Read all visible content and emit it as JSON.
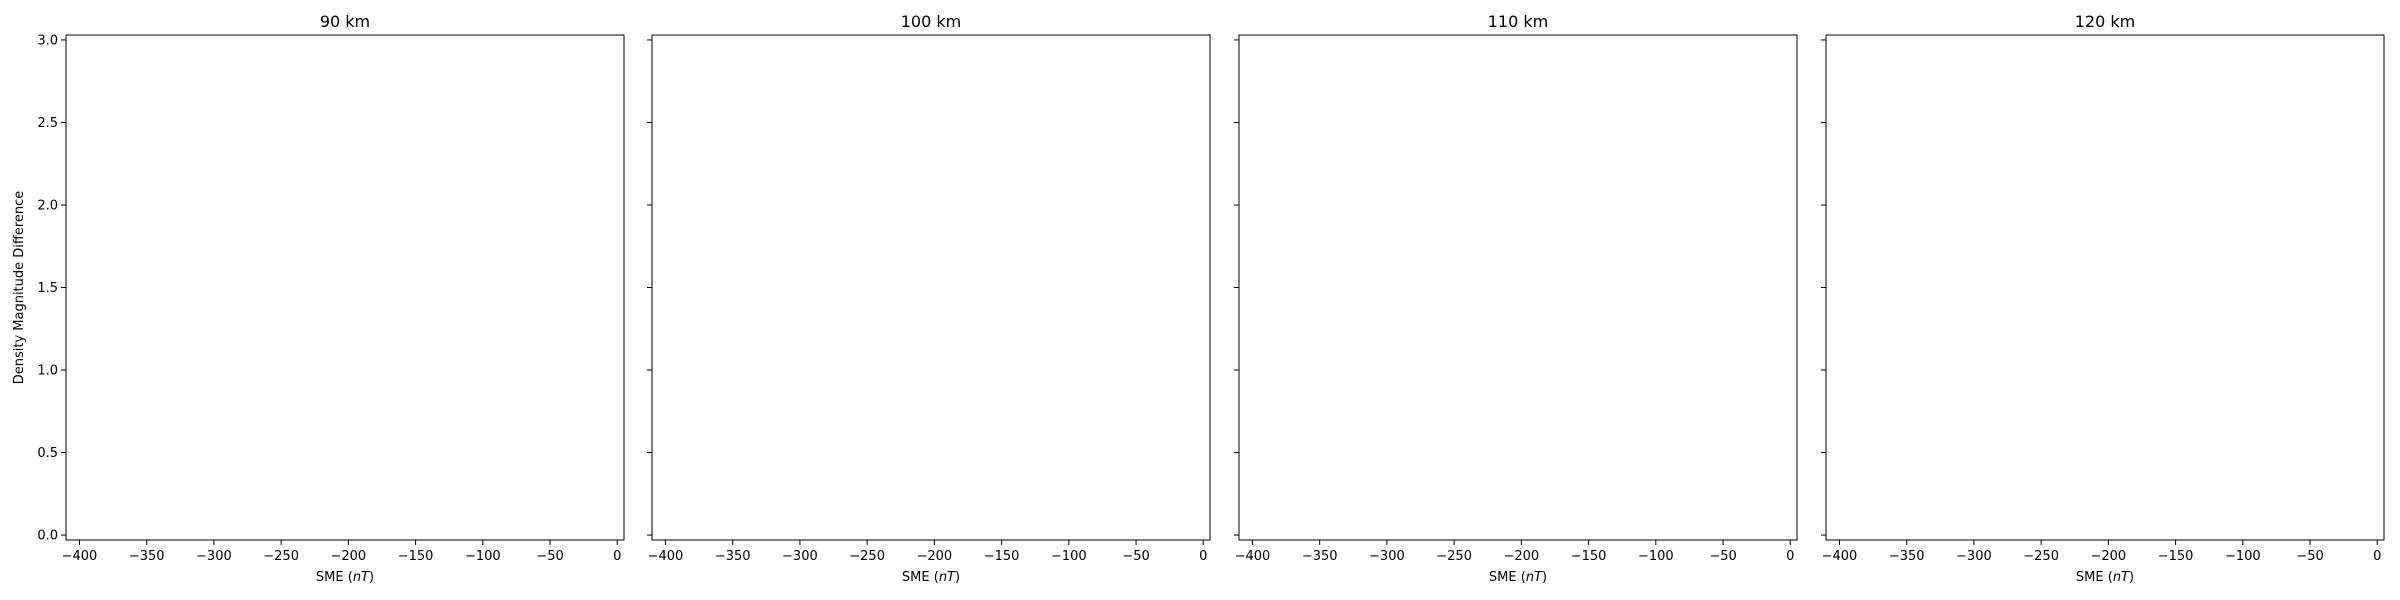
{
  "chart_data": [
    {
      "type": "scatter",
      "title": "90 km",
      "xlabel": "SME (nT)",
      "ylabel": "Density Magnitude Difference",
      "xlim": [
        -410,
        5
      ],
      "ylim": [
        -0.03,
        3.03
      ],
      "xticks": [
        "−400",
        "−350",
        "−300",
        "−250",
        "−200",
        "−150",
        "−100",
        "−50",
        "0"
      ],
      "yticks": [
        "0.0",
        "0.5",
        "1.0",
        "1.5",
        "2.0",
        "2.5",
        "3.0"
      ],
      "series": []
    },
    {
      "type": "scatter",
      "title": "100 km",
      "xlabel": "SME (nT)",
      "ylabel": "",
      "xlim": [
        -410,
        5
      ],
      "ylim": [
        -0.03,
        3.03
      ],
      "xticks": [
        "−400",
        "−350",
        "−300",
        "−250",
        "−200",
        "−150",
        "−100",
        "−50",
        "0"
      ],
      "yticks": [],
      "series": []
    },
    {
      "type": "scatter",
      "title": "110 km",
      "xlabel": "SME (nT)",
      "ylabel": "",
      "xlim": [
        -410,
        5
      ],
      "ylim": [
        -0.03,
        3.03
      ],
      "xticks": [
        "−400",
        "−350",
        "−300",
        "−250",
        "−200",
        "−150",
        "−100",
        "−50",
        "0"
      ],
      "yticks": [],
      "series": []
    },
    {
      "type": "scatter",
      "title": "120 km",
      "xlabel": "SME (nT)",
      "ylabel": "",
      "xlim": [
        -410,
        5
      ],
      "ylim": [
        -0.03,
        3.03
      ],
      "xticks": [
        "−400",
        "−350",
        "−300",
        "−250",
        "−200",
        "−150",
        "−100",
        "−50",
        "0"
      ],
      "yticks": [],
      "series": []
    }
  ]
}
